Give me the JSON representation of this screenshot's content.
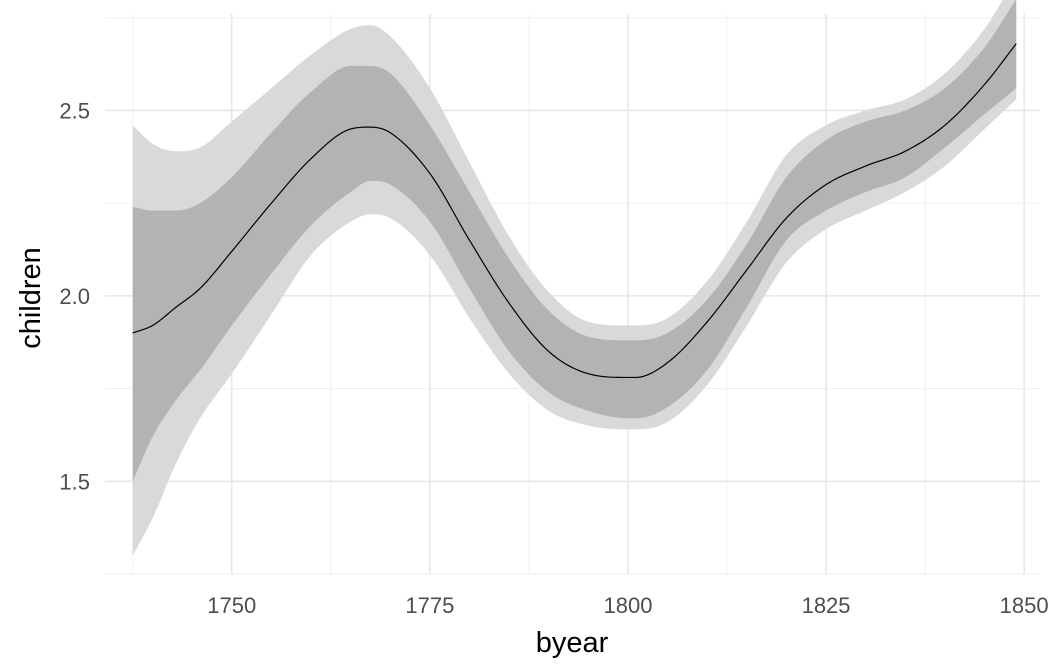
{
  "chart_data": {
    "type": "area",
    "title": "",
    "xlabel": "byear",
    "ylabel": "children",
    "xlim": [
      1734,
      1852
    ],
    "ylim": [
      1.25,
      2.76
    ],
    "x_ticks": [
      1750,
      1775,
      1800,
      1825,
      1850
    ],
    "x_tick_labels": [
      "1750",
      "1775",
      "1800",
      "1825",
      "1850"
    ],
    "y_ticks": [
      1.5,
      2.0,
      2.5
    ],
    "y_tick_labels": [
      "1.5",
      "2.0",
      "2.5"
    ],
    "x_minor_ticks": [
      1737.5,
      1762.5,
      1787.5,
      1812.5,
      1837.5
    ],
    "y_minor_ticks": [
      1.25,
      1.75,
      2.25,
      2.75
    ],
    "grid": true,
    "legend": "none",
    "series": [
      {
        "role": "outer-band",
        "color": "#d9d9d9",
        "x": [
          1737.5,
          1740,
          1743,
          1746,
          1750,
          1755,
          1760,
          1765,
          1767.5,
          1770,
          1775,
          1780,
          1785,
          1790,
          1795,
          1800,
          1801,
          1805,
          1810,
          1815,
          1820,
          1825,
          1830,
          1835,
          1840,
          1845,
          1849
        ],
        "upper": [
          2.46,
          2.41,
          2.39,
          2.4,
          2.47,
          2.56,
          2.65,
          2.72,
          2.73,
          2.7,
          2.56,
          2.36,
          2.16,
          2.01,
          1.93,
          1.92,
          1.92,
          1.94,
          2.04,
          2.2,
          2.38,
          2.46,
          2.5,
          2.53,
          2.6,
          2.72,
          2.86
        ],
        "lower": [
          1.3,
          1.4,
          1.55,
          1.67,
          1.79,
          1.95,
          2.11,
          2.2,
          2.22,
          2.21,
          2.11,
          1.94,
          1.79,
          1.69,
          1.65,
          1.64,
          1.64,
          1.66,
          1.76,
          1.92,
          2.09,
          2.18,
          2.23,
          2.28,
          2.35,
          2.45,
          2.53
        ]
      },
      {
        "role": "inner-band",
        "color": "#b3b3b3",
        "x": [
          1737.5,
          1740,
          1743,
          1746,
          1750,
          1755,
          1760,
          1765,
          1767.5,
          1770,
          1775,
          1780,
          1785,
          1790,
          1795,
          1800,
          1801,
          1805,
          1810,
          1815,
          1820,
          1825,
          1830,
          1835,
          1840,
          1845,
          1849
        ],
        "upper": [
          2.24,
          2.23,
          2.23,
          2.25,
          2.32,
          2.44,
          2.55,
          2.62,
          2.62,
          2.6,
          2.46,
          2.28,
          2.1,
          1.96,
          1.89,
          1.88,
          1.88,
          1.9,
          1.99,
          2.14,
          2.32,
          2.42,
          2.47,
          2.5,
          2.56,
          2.67,
          2.8
        ],
        "lower": [
          1.5,
          1.62,
          1.72,
          1.8,
          1.92,
          2.06,
          2.19,
          2.28,
          2.31,
          2.3,
          2.2,
          2.02,
          1.85,
          1.74,
          1.69,
          1.67,
          1.67,
          1.7,
          1.8,
          1.97,
          2.15,
          2.23,
          2.28,
          2.32,
          2.4,
          2.49,
          2.56
        ]
      },
      {
        "role": "fit-line",
        "color": "#000000",
        "x": [
          1737.5,
          1740,
          1743,
          1746,
          1750,
          1755,
          1760,
          1765,
          1767.5,
          1770,
          1775,
          1780,
          1785,
          1790,
          1795,
          1800,
          1801,
          1805,
          1810,
          1815,
          1820,
          1825,
          1830,
          1835,
          1840,
          1845,
          1849
        ],
        "y": [
          1.9,
          1.92,
          1.97,
          2.02,
          2.12,
          2.25,
          2.37,
          2.45,
          2.455,
          2.44,
          2.33,
          2.15,
          1.98,
          1.85,
          1.79,
          1.78,
          1.78,
          1.82,
          1.93,
          2.07,
          2.21,
          2.3,
          2.35,
          2.39,
          2.46,
          2.57,
          2.68
        ]
      }
    ]
  }
}
